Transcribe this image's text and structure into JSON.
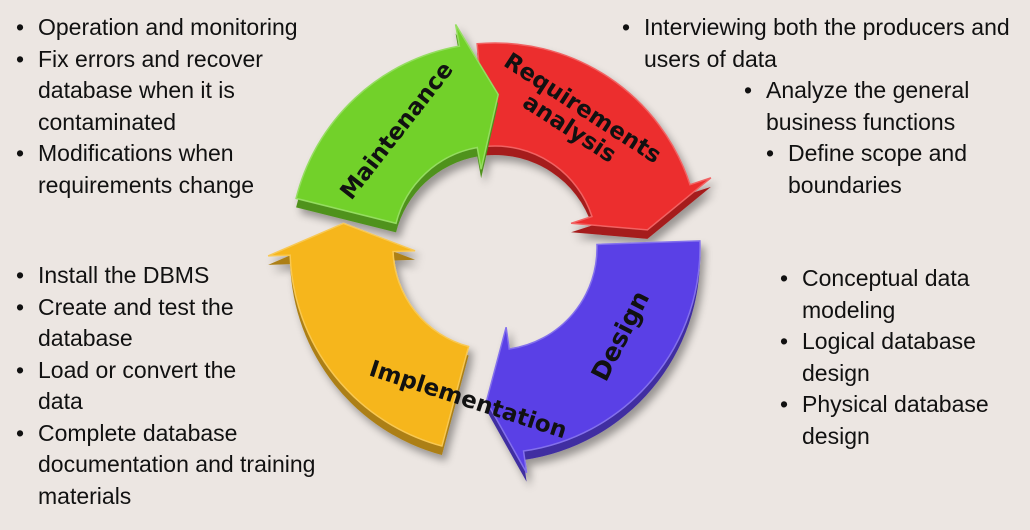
{
  "cycle": {
    "stages": [
      {
        "id": "requirements",
        "label_lines": [
          "Requirements",
          "analysis"
        ],
        "color": "#ec2d2d"
      },
      {
        "id": "design",
        "label_lines": [
          "Design"
        ],
        "color": "#5a40e6"
      },
      {
        "id": "implementation",
        "label_lines": [
          "Implementation"
        ],
        "color": "#f6b61a"
      },
      {
        "id": "maintenance",
        "label_lines": [
          "Maintenance"
        ],
        "color": "#72d12c"
      }
    ]
  },
  "lists": {
    "maintenance": [
      "Operation and monitoring",
      "Fix errors and recover database when it is contaminated",
      "Modifications when requirements change"
    ],
    "implementation": [
      "Install the DBMS",
      "Create and test the database",
      "Load or convert the data",
      "Complete database documentation and training materials"
    ],
    "requirements": [
      "Interviewing both the producers and users of data",
      "Analyze the general business functions",
      "Define scope and boundaries"
    ],
    "design": [
      "Conceptual data modeling",
      "Logical database design",
      "Physical database design"
    ]
  }
}
